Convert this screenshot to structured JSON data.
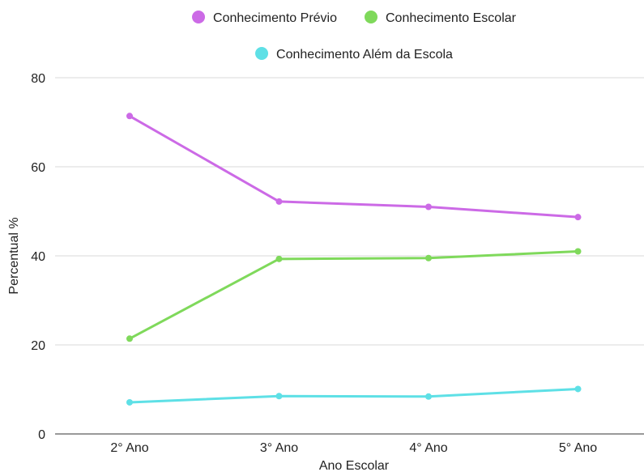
{
  "chart_data": {
    "type": "line",
    "title": "",
    "xlabel": "Ano Escolar",
    "ylabel": "Percentual %",
    "categories": [
      "2° Ano",
      "3° Ano",
      "4° Ano",
      "5° Ano"
    ],
    "ylim": [
      0,
      80
    ],
    "yticks": [
      0,
      20,
      40,
      60,
      80
    ],
    "grid": true,
    "legend_position": "top",
    "series": [
      {
        "name": "Conhecimento Prévio",
        "color": "#cc6ae6",
        "values": [
          71.4,
          52.2,
          51.0,
          48.7
        ]
      },
      {
        "name": "Conhecimento Escolar",
        "color": "#7fd95b",
        "values": [
          21.4,
          39.3,
          39.5,
          41.0
        ]
      },
      {
        "name": "Conhecimento Além da Escola",
        "color": "#5ee0e6",
        "values": [
          7.1,
          8.5,
          8.4,
          10.1
        ]
      }
    ]
  }
}
